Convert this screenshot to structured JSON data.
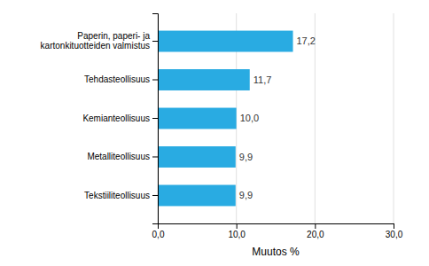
{
  "chart_data": {
    "type": "bar",
    "orientation": "horizontal",
    "categories": [
      "Tekstiiliteollisuus",
      "Metalliteollisuus",
      "Kemianteollisuus",
      "Tehdasteollisuus",
      "Paperin, paperi- ja kartonkituotteiden valmistus"
    ],
    "values": [
      9.9,
      9.9,
      10.0,
      11.7,
      17.2
    ],
    "value_labels": [
      "9,9",
      "9,9",
      "10,0",
      "11,7",
      "17,2"
    ],
    "data_labels": true,
    "color": "#29ABE2",
    "xlabel": "Muutos %",
    "xlim": [
      0,
      30
    ],
    "xticks": [
      {
        "value": 0.0,
        "label": "0,0"
      },
      {
        "value": 10.0,
        "label": "10,0"
      },
      {
        "value": 20.0,
        "label": "20,0"
      },
      {
        "value": 30.0,
        "label": "30,0"
      }
    ],
    "grid": true
  }
}
